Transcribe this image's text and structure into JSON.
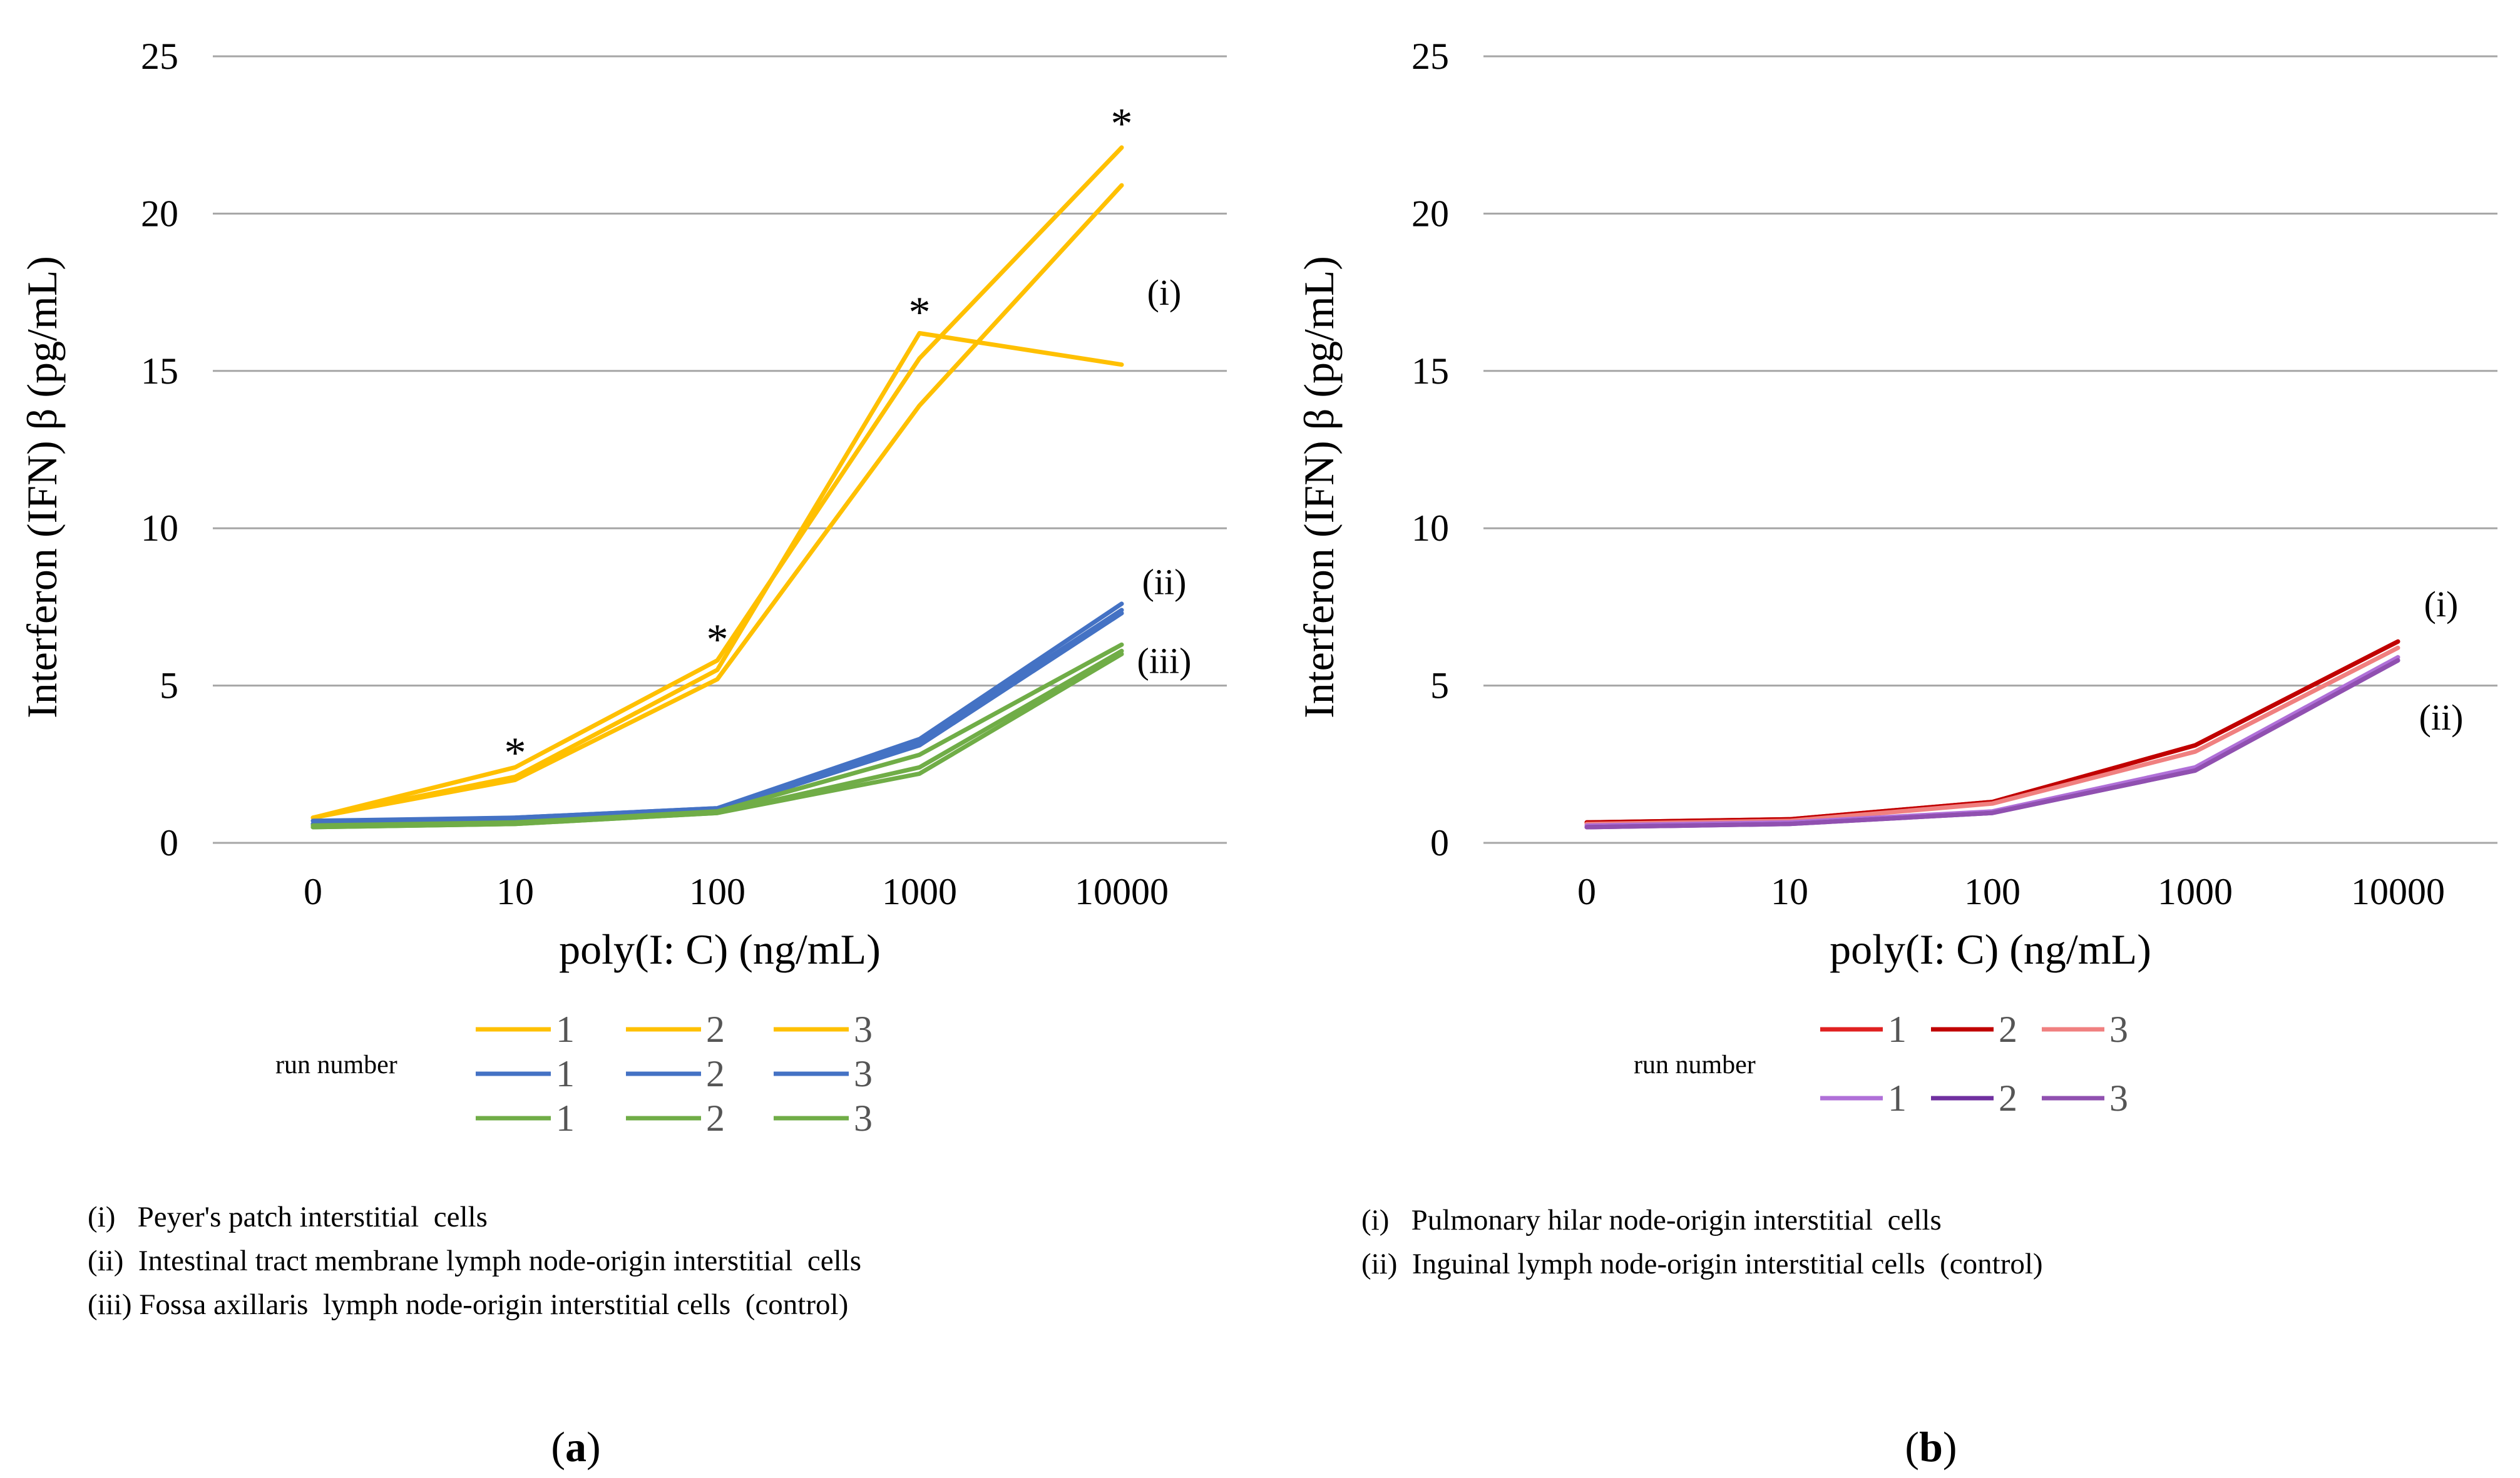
{
  "chart_data": [
    {
      "panel_label_open": "(",
      "panel_label_letter": "a",
      "panel_label_close": ")",
      "type": "line",
      "xlabel": "poly(I: C) (ng/mL)",
      "ylabel": "Interferon (IFN) β (pg/mL)",
      "categories": [
        "0",
        "10",
        "100",
        "1000",
        "10000"
      ],
      "ylim": [
        0,
        25
      ],
      "yticks": [
        0,
        5,
        10,
        15,
        20,
        25
      ],
      "legend_title": "run number",
      "series": [
        {
          "group": "i",
          "name": "1",
          "color": "#FFC000",
          "values": [
            0.8,
            2.1,
            5.5,
            16.2,
            15.2
          ]
        },
        {
          "group": "i",
          "name": "2",
          "color": "#FFC000",
          "values": [
            0.8,
            2.4,
            5.8,
            15.4,
            22.1
          ]
        },
        {
          "group": "i",
          "name": "3",
          "color": "#FFC000",
          "values": [
            0.8,
            2.0,
            5.2,
            13.9,
            20.9
          ]
        },
        {
          "group": "ii",
          "name": "1",
          "color": "#4472C4",
          "values": [
            0.7,
            0.8,
            1.1,
            3.3,
            7.6
          ]
        },
        {
          "group": "ii",
          "name": "2",
          "color": "#4472C4",
          "values": [
            0.6,
            0.8,
            1.1,
            3.2,
            7.4
          ]
        },
        {
          "group": "ii",
          "name": "3",
          "color": "#4472C4",
          "values": [
            0.6,
            0.75,
            1.05,
            3.1,
            7.3
          ]
        },
        {
          "group": "iii",
          "name": "1",
          "color": "#70AD47",
          "values": [
            0.55,
            0.65,
            1.0,
            2.8,
            6.3
          ]
        },
        {
          "group": "iii",
          "name": "2",
          "color": "#70AD47",
          "values": [
            0.5,
            0.6,
            0.95,
            2.4,
            6.1
          ]
        },
        {
          "group": "iii",
          "name": "3",
          "color": "#70AD47",
          "values": [
            0.5,
            0.6,
            0.95,
            2.2,
            6.0
          ]
        }
      ],
      "annotations": [
        {
          "text": "(i)",
          "x_index": 4,
          "y": 17.5
        },
        {
          "text": "(ii)",
          "x_index": 4,
          "y": 8.3
        },
        {
          "text": "(iii)",
          "x_index": 4,
          "y": 5.8
        }
      ],
      "significance": [
        {
          "text": "*",
          "x_index": 1,
          "y": 3.0
        },
        {
          "text": "*",
          "x_index": 2,
          "y": 6.6
        },
        {
          "text": "*",
          "x_index": 3,
          "y": 17.0
        },
        {
          "text": "*",
          "x_index": 4,
          "y": 23.0
        }
      ],
      "notes": [
        "(i)   Peyer's patch interstitial  cells",
        "(ii)  Intestinal tract membrane lymph node-origin interstitial  cells",
        "(iii) Fossa axillaris  lymph node-origin interstitial cells  (control)"
      ]
    },
    {
      "panel_label_open": "(",
      "panel_label_letter": "b",
      "panel_label_close": ")",
      "type": "line",
      "xlabel": "poly(I: C) (ng/mL)",
      "ylabel": "Interferon (IFN) β (pg/mL)",
      "categories": [
        "0",
        "10",
        "100",
        "1000",
        "10000"
      ],
      "ylim": [
        0,
        25
      ],
      "yticks": [
        0,
        5,
        10,
        15,
        20,
        25
      ],
      "legend_title": "run number",
      "series": [
        {
          "group": "i",
          "name": "1",
          "color": "#E02020",
          "values": [
            0.65,
            0.75,
            1.3,
            3.1,
            6.4
          ]
        },
        {
          "group": "i",
          "name": "2",
          "color": "#C00000",
          "values": [
            0.65,
            0.75,
            1.3,
            3.1,
            6.4
          ]
        },
        {
          "group": "i",
          "name": "3",
          "color": "#F08080",
          "values": [
            0.6,
            0.7,
            1.25,
            2.9,
            6.2
          ]
        },
        {
          "group": "ii",
          "name": "1",
          "color": "#B070D8",
          "values": [
            0.55,
            0.65,
            1.0,
            2.4,
            5.9
          ]
        },
        {
          "group": "ii",
          "name": "2",
          "color": "#7030A0",
          "values": [
            0.5,
            0.6,
            0.95,
            2.3,
            5.8
          ]
        },
        {
          "group": "ii",
          "name": "3",
          "color": "#9050B0",
          "values": [
            0.5,
            0.6,
            0.95,
            2.3,
            5.8
          ]
        }
      ],
      "annotations": [
        {
          "text": "(i)",
          "x_index": 4,
          "y": 7.6
        },
        {
          "text": "(ii)",
          "x_index": 4,
          "y": 4.0
        }
      ],
      "significance": [],
      "notes": [
        "(i)   Pulmonary hilar node-origin interstitial  cells",
        "(ii)  Inguinal lymph node-origin interstitial cells  (control)"
      ]
    }
  ]
}
